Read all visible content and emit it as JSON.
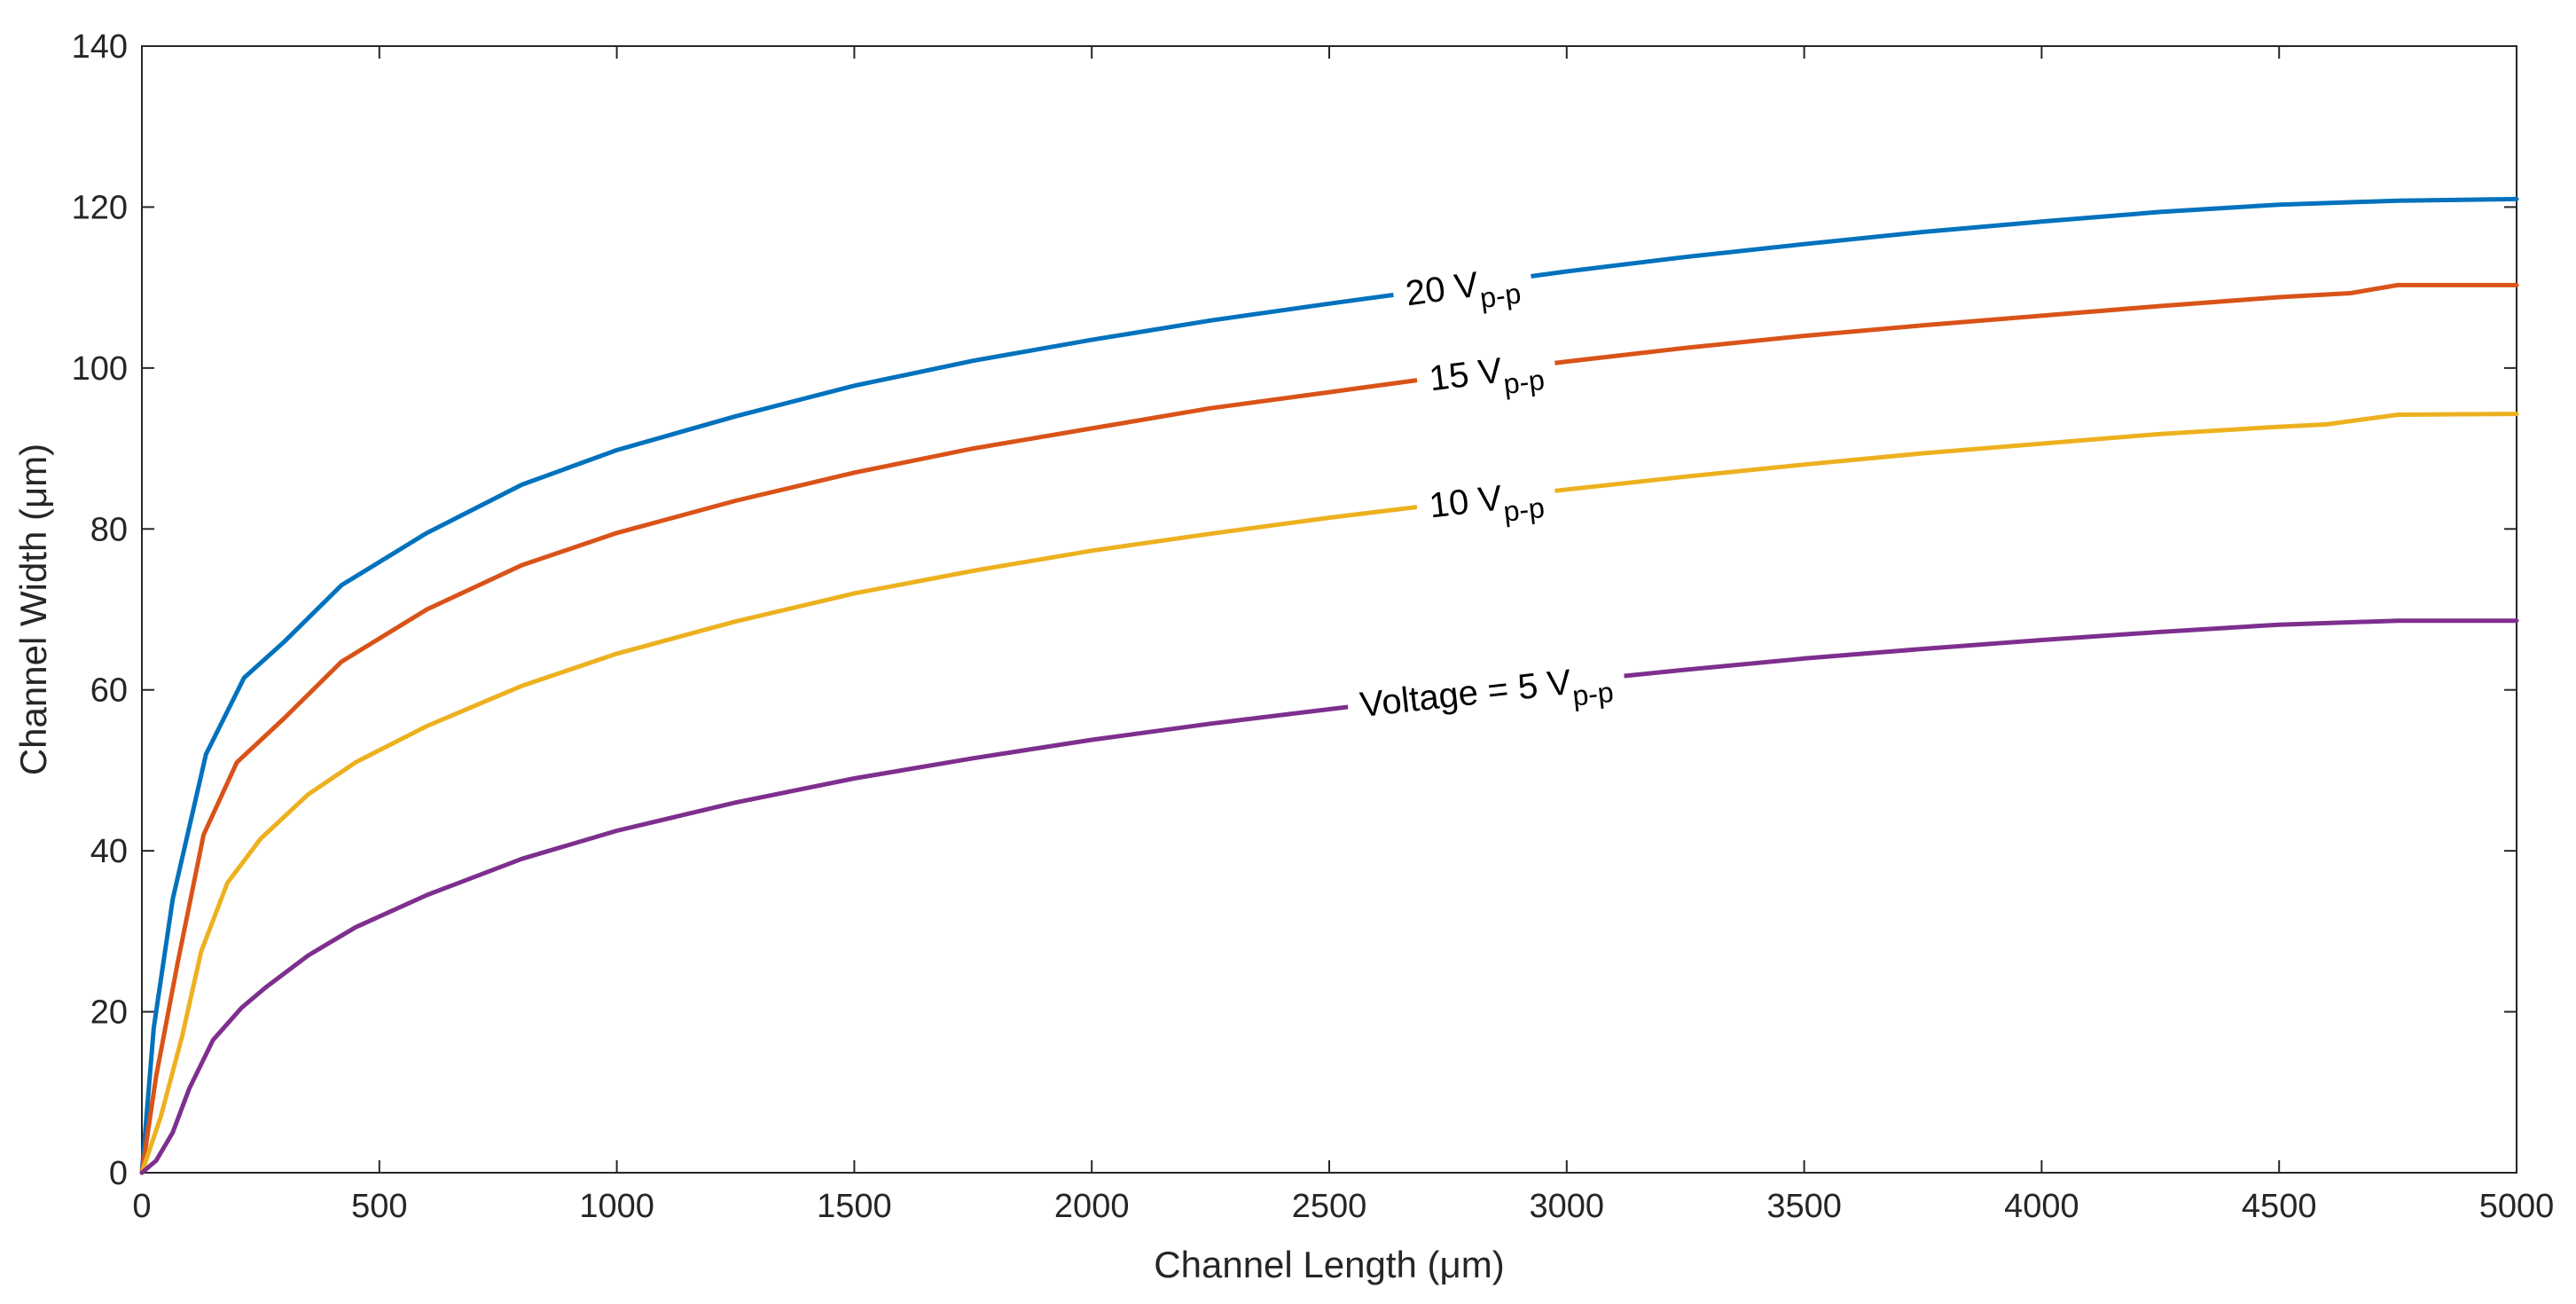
{
  "chart_data": {
    "type": "line",
    "xlabel": "Channel Length (μm)",
    "ylabel": "Channel Width (μm)",
    "xlim": [
      0,
      5000
    ],
    "ylim": [
      0,
      140
    ],
    "xticks": [
      0,
      500,
      1000,
      1500,
      2000,
      2500,
      3000,
      3500,
      4000,
      4500,
      5000
    ],
    "yticks": [
      0,
      20,
      40,
      60,
      80,
      100,
      120,
      140
    ],
    "grid": false,
    "series": [
      {
        "name": "20 Vp-p",
        "label_main": "20 V",
        "label_sub": "p-p",
        "label_at": 2780,
        "color": "#0072BD",
        "x": [
          0,
          25,
          65,
          135,
          215,
          300,
          420,
          600,
          800,
          1000,
          1250,
          1500,
          1750,
          2000,
          2250,
          2500,
          2750,
          3000,
          3250,
          3500,
          3750,
          4000,
          4250,
          4500,
          4750,
          5000
        ],
        "y": [
          0,
          18,
          34,
          52,
          61.5,
          66,
          73,
          79.5,
          85.5,
          89.8,
          94,
          97.8,
          100.9,
          103.5,
          105.9,
          108,
          110,
          112,
          113.8,
          115.4,
          116.9,
          118.2,
          119.4,
          120.3,
          120.8,
          121
        ]
      },
      {
        "name": "15 Vp-p",
        "label_main": "15 V",
        "label_sub": "p-p",
        "label_at": 2830,
        "color": "#D95319",
        "x": [
          0,
          30,
          75,
          130,
          200,
          300,
          420,
          600,
          800,
          1000,
          1250,
          1500,
          1750,
          2000,
          2250,
          2500,
          2750,
          3000,
          3250,
          3500,
          3750,
          4000,
          4250,
          4500,
          4650,
          4750,
          5000
        ],
        "y": [
          0,
          12,
          26,
          42,
          51,
          56.5,
          63.5,
          70,
          75.5,
          79.5,
          83.5,
          87,
          90,
          92.5,
          95,
          97,
          99,
          100.8,
          102.5,
          104,
          105.3,
          106.5,
          107.7,
          108.8,
          109.3,
          110.3,
          110.3
        ]
      },
      {
        "name": "10 Vp-p",
        "label_main": "10 V",
        "label_sub": "p-p",
        "label_at": 2830,
        "color": "#EDB120",
        "x": [
          0,
          40,
          85,
          125,
          180,
          250,
          350,
          450,
          600,
          800,
          1000,
          1250,
          1500,
          1750,
          2000,
          2250,
          2500,
          2750,
          3000,
          3250,
          3500,
          3750,
          4000,
          4250,
          4500,
          4600,
          4750,
          5000
        ],
        "y": [
          0,
          7,
          17,
          27.5,
          36,
          41.5,
          47,
          51,
          55.5,
          60.5,
          64.5,
          68.5,
          72,
          74.8,
          77.3,
          79.4,
          81.4,
          83.2,
          84.9,
          86.5,
          88,
          89.4,
          90.6,
          91.8,
          92.7,
          93,
          94.2,
          94.3
        ]
      },
      {
        "name": "Voltage = 5 Vp-p",
        "label_main": "Voltage = 5 V",
        "label_sub": "p-p",
        "label_at": 2830,
        "color": "#7E2F8E",
        "x": [
          0,
          30,
          65,
          100,
          150,
          210,
          260,
          350,
          450,
          600,
          800,
          1000,
          1250,
          1500,
          1750,
          2000,
          2250,
          2500,
          2750,
          3000,
          3250,
          3500,
          3750,
          4000,
          4250,
          4500,
          4750,
          5000
        ],
        "y": [
          0,
          1.5,
          5,
          10.5,
          16.5,
          20.5,
          23,
          27,
          30.5,
          34.5,
          39,
          42.5,
          46,
          49,
          51.5,
          53.8,
          55.8,
          57.6,
          59.4,
          61,
          62.5,
          63.9,
          65.1,
          66.2,
          67.2,
          68.1,
          68.6,
          68.6
        ]
      }
    ]
  }
}
